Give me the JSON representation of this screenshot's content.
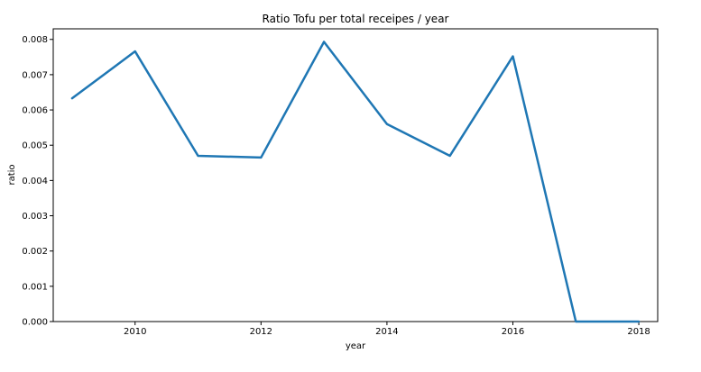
{
  "chart_data": {
    "type": "line",
    "title": "Ratio Tofu per total receipes / year",
    "xlabel": "year",
    "ylabel": "ratio",
    "xlim": [
      2008.7,
      2018.3
    ],
    "ylim": [
      0,
      0.0083
    ],
    "grid": false,
    "x_ticks": [
      2010,
      2012,
      2014,
      2016,
      2018
    ],
    "x_tick_labels": [
      "2010",
      "2012",
      "2014",
      "2016",
      "2018"
    ],
    "y_ticks": [
      0,
      0.001,
      0.002,
      0.003,
      0.004,
      0.005,
      0.006,
      0.007,
      0.008
    ],
    "y_tick_labels": [
      "0.000",
      "0.001",
      "0.002",
      "0.003",
      "0.004",
      "0.005",
      "0.006",
      "0.007",
      "0.008"
    ],
    "series": [
      {
        "color": "#1f77b4",
        "x": [
          2009,
          2010,
          2011,
          2012,
          2013,
          2014,
          2015,
          2016,
          2017,
          2018
        ],
        "y": [
          0.00633,
          0.00766,
          0.0047,
          0.00465,
          0.00793,
          0.0056,
          0.0047,
          0.00752,
          0.0,
          0.0
        ]
      }
    ]
  }
}
